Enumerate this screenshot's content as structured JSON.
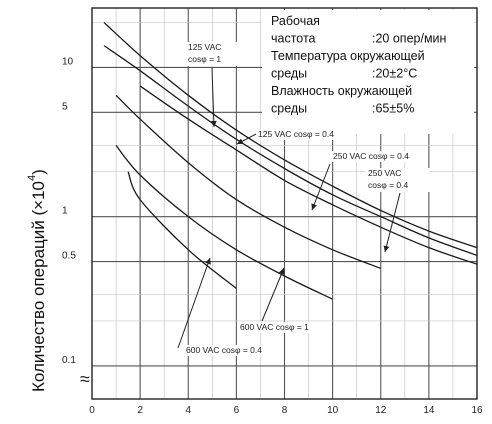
{
  "chart_data": {
    "type": "line",
    "title": "",
    "xlabel": "",
    "ylabel": "Количество операций (×10",
    "ylabel_exponent": "4",
    "ylabel_close": ")",
    "y_scale": "log",
    "xlim": [
      0,
      16
    ],
    "ylim": [
      0.06,
      25
    ],
    "x_ticks": [
      0,
      2,
      4,
      6,
      8,
      10,
      12,
      14,
      16
    ],
    "x_tick_labels": [
      "0",
      "2",
      "4",
      "6",
      "8",
      "10",
      "12",
      "14",
      "16"
    ],
    "y_ticks": [
      0.1,
      0.5,
      1,
      5,
      10
    ],
    "y_tick_labels": [
      "0.1",
      "0.5",
      "1",
      "5",
      "10"
    ],
    "axis_break_symbol": "≈",
    "grid": true,
    "conditions": [
      {
        "text": "Рабочая"
      },
      {
        "text": "частота",
        "value": ":20 опер/мин"
      },
      {
        "text": "Температура окружающей"
      },
      {
        "text": "среды",
        "value": ":20±2°C"
      },
      {
        "text": "Влажность окружающей"
      },
      {
        "text": "среды",
        "value": ":65±5%"
      }
    ],
    "series": [
      {
        "id": "125-vac-cos1",
        "label_lines": [
          "125 VAC",
          "cosφ = 1"
        ],
        "x": [
          0.5,
          2,
          4,
          6,
          8,
          10,
          12,
          14,
          16
        ],
        "y": [
          20,
          12,
          6.5,
          3.8,
          2.4,
          1.6,
          1.1,
          0.8,
          0.62
        ]
      },
      {
        "id": "125-vac-cos04",
        "label_lines": [
          "125 VAC cosφ = 0.4"
        ],
        "x": [
          0.5,
          2,
          4,
          6,
          8,
          10,
          12,
          14,
          16
        ],
        "y": [
          14,
          9.5,
          5.5,
          3.3,
          2.1,
          1.4,
          1.0,
          0.72,
          0.55
        ]
      },
      {
        "id": "250-vac-cos04-a",
        "label_lines": [
          "250 VAC cosφ = 0.4"
        ],
        "x": [
          2,
          4,
          6,
          8,
          10,
          12,
          14,
          16
        ],
        "y": [
          7.5,
          4.5,
          2.8,
          1.75,
          1.2,
          0.85,
          0.62,
          0.48
        ]
      },
      {
        "id": "250-vac-cos04-b",
        "label_lines": [
          "250 VAC",
          "cosφ = 0.4"
        ],
        "x": [
          1,
          2,
          4,
          6,
          8,
          10,
          12
        ],
        "y": [
          6.5,
          4.5,
          2.3,
          1.3,
          0.85,
          0.6,
          0.45
        ]
      },
      {
        "id": "600-vac-cos1",
        "label_lines": [
          "600 VAC cosφ = 1"
        ],
        "x": [
          1,
          2,
          4,
          6,
          8,
          10
        ],
        "y": [
          3.0,
          1.9,
          1.0,
          0.6,
          0.4,
          0.28
        ]
      },
      {
        "id": "600-vac-cos04",
        "label_lines": [
          "600 VAC cosφ = 0.4"
        ],
        "x": [
          1.5,
          2,
          4,
          6
        ],
        "y": [
          2.0,
          1.3,
          0.6,
          0.33
        ]
      }
    ]
  }
}
